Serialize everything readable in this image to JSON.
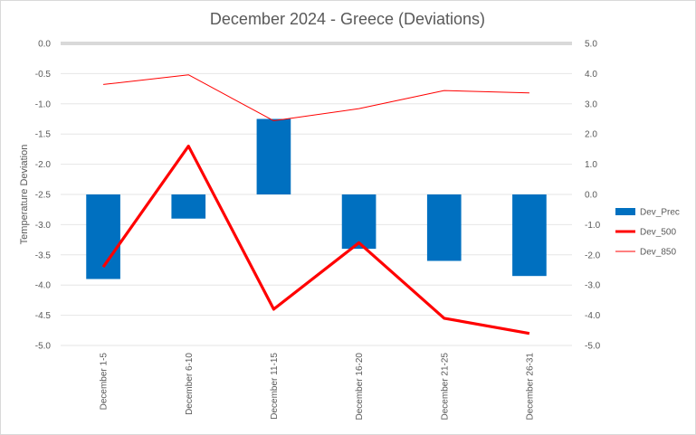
{
  "chart_data": {
    "type": "bar",
    "title": "December 2024 - Greece (Deviations)",
    "xlabel": "",
    "ylabel": "Temperature Deviation",
    "categories": [
      "December 1-5",
      "December 6-10",
      "December 11-15",
      "December 16-20",
      "December 21-25",
      "December 26-31"
    ],
    "series": [
      {
        "name": "Dev_Prec",
        "type": "bar",
        "axis": "secondary",
        "color": "#0070c0",
        "values": [
          -2.8,
          -0.8,
          2.5,
          -1.8,
          -2.2,
          -2.7
        ]
      },
      {
        "name": "Dev_500",
        "type": "line",
        "axis": "primary",
        "color": "#ff0000",
        "line": "thick",
        "values": [
          -3.7,
          -1.7,
          -4.4,
          -3.3,
          -4.55,
          -4.8
        ]
      },
      {
        "name": "Dev_850",
        "type": "line",
        "axis": "primary",
        "color": "#ff0000",
        "line": "thin",
        "values": [
          -0.68,
          -0.52,
          -1.28,
          -1.08,
          -0.78,
          -0.82
        ]
      }
    ],
    "y_axis_primary": {
      "min": -5.0,
      "max": 0.0,
      "step": 0.5,
      "ticks": [
        "0.0",
        "-0.5",
        "-1.0",
        "-1.5",
        "-2.0",
        "-2.5",
        "-3.0",
        "-3.5",
        "-4.0",
        "-4.5",
        "-5.0"
      ]
    },
    "y_axis_secondary": {
      "min": -5.0,
      "max": 5.0,
      "step": 1.0,
      "ticks": [
        "5.0",
        "4.0",
        "3.0",
        "2.0",
        "1.0",
        "0.0",
        "-1.0",
        "-2.0",
        "-3.0",
        "-4.0",
        "-5.0"
      ]
    },
    "grid": true,
    "legend_position": "right"
  }
}
